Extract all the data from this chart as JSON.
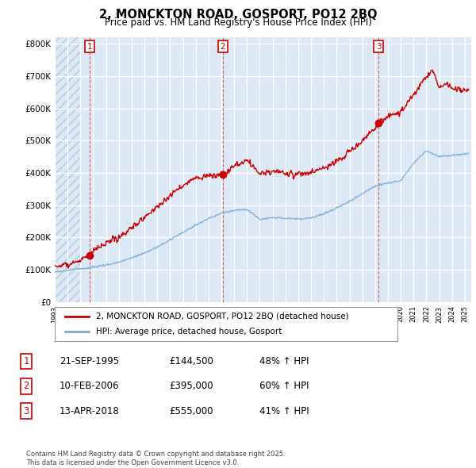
{
  "title": "2, MONCKTON ROAD, GOSPORT, PO12 2BQ",
  "subtitle": "Price paid vs. HM Land Registry's House Price Index (HPI)",
  "ylim": [
    0,
    820000
  ],
  "yticks": [
    0,
    100000,
    200000,
    300000,
    400000,
    500000,
    600000,
    700000,
    800000
  ],
  "ytick_labels": [
    "£0",
    "£100K",
    "£200K",
    "£300K",
    "£400K",
    "£500K",
    "£600K",
    "£700K",
    "£800K"
  ],
  "purchases": [
    {
      "num": 1,
      "date_x": 1995.72,
      "price": 144500
    },
    {
      "num": 2,
      "date_x": 2006.11,
      "price": 395000
    },
    {
      "num": 3,
      "date_x": 2018.28,
      "price": 555000
    }
  ],
  "purchase_color": "#cc0000",
  "hpi_color": "#7aadd4",
  "bg_color": "#dce9f5",
  "hatch_color": "#c8d8e8",
  "legend_entry1": "2, MONCKTON ROAD, GOSPORT, PO12 2BQ (detached house)",
  "legend_entry2": "HPI: Average price, detached house, Gosport",
  "table_rows": [
    [
      "1",
      "21-SEP-1995",
      "£144,500",
      "48% ↑ HPI"
    ],
    [
      "2",
      "10-FEB-2006",
      "£395,000",
      "60% ↑ HPI"
    ],
    [
      "3",
      "13-APR-2018",
      "£555,000",
      "41% ↑ HPI"
    ]
  ],
  "footnote": "Contains HM Land Registry data © Crown copyright and database right 2025.\nThis data is licensed under the Open Government Licence v3.0.",
  "xlim_start": 1993.0,
  "xlim_end": 2025.5,
  "hpi_anchors_x": [
    1993,
    1994,
    1995,
    1996,
    1997,
    1998,
    1999,
    2000,
    2001,
    2002,
    2003,
    2004,
    2005,
    2006,
    2007,
    2008,
    2009,
    2010,
    2011,
    2012,
    2013,
    2014,
    2015,
    2016,
    2017,
    2018,
    2019,
    2020,
    2021,
    2022,
    2023,
    2024,
    2025
  ],
  "hpi_anchors_y": [
    93000,
    97000,
    102000,
    108000,
    115000,
    123000,
    136000,
    152000,
    170000,
    192000,
    215000,
    238000,
    258000,
    275000,
    285000,
    288000,
    258000,
    262000,
    261000,
    258000,
    262000,
    274000,
    291000,
    312000,
    337000,
    360000,
    370000,
    376000,
    430000,
    470000,
    452000,
    455000,
    460000
  ],
  "price_anchors_x": [
    1993,
    1994,
    1995,
    1995.72,
    1996,
    1997,
    1998,
    1999,
    2000,
    2001,
    2002,
    2003,
    2004,
    2005,
    2006,
    2006.11,
    2007,
    2008,
    2009,
    2010,
    2011,
    2012,
    2013,
    2014,
    2015,
    2016,
    2017,
    2018,
    2018.28,
    2019,
    2020,
    2021,
    2022,
    2022.5,
    2023,
    2023.5,
    2024,
    2025
  ],
  "price_anchors_y": [
    110000,
    118000,
    128000,
    144500,
    160000,
    178000,
    200000,
    230000,
    262000,
    295000,
    330000,
    360000,
    385000,
    390000,
    395000,
    395000,
    420000,
    440000,
    395000,
    405000,
    398000,
    395000,
    400000,
    415000,
    435000,
    465000,
    500000,
    540000,
    555000,
    575000,
    590000,
    640000,
    700000,
    720000,
    660000,
    680000,
    660000,
    655000
  ]
}
